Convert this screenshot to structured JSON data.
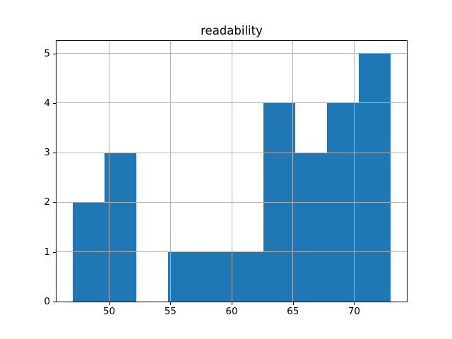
{
  "chart_data": {
    "type": "bar",
    "subtype": "histogram",
    "title": "readability",
    "xlabel": "",
    "ylabel": "",
    "bin_edges": [
      47.0,
      49.6,
      52.2,
      54.8,
      57.4,
      60.0,
      62.6,
      65.2,
      67.8,
      70.4,
      73.0
    ],
    "counts": [
      2,
      3,
      0,
      1,
      1,
      1,
      4,
      3,
      4,
      5
    ],
    "xticks": [
      50,
      55,
      60,
      65,
      70
    ],
    "yticks": [
      0,
      1,
      2,
      3,
      4,
      5
    ],
    "xlim": [
      45.7,
      74.3
    ],
    "ylim": [
      0,
      5.25
    ],
    "grid": true,
    "grid_above_bars": true,
    "legend": false,
    "colors": {
      "bar": "#1f77b4",
      "grid": "#b0b0b0",
      "spine": "#000000",
      "text": "#000000",
      "background": "#ffffff"
    }
  }
}
